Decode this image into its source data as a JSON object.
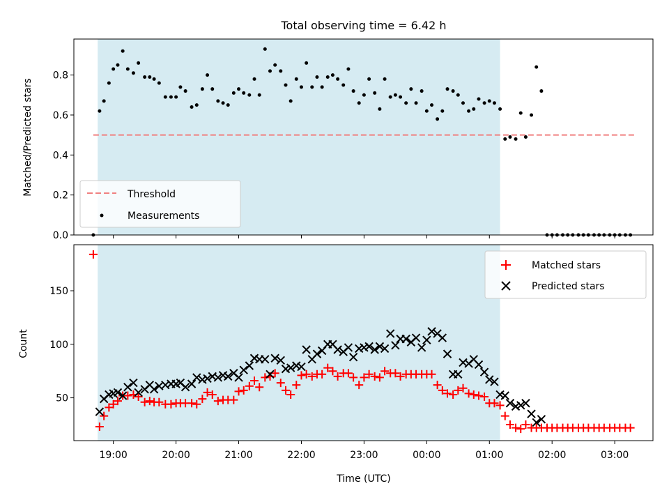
{
  "title": "Total observing time = 6.42 h",
  "colors": {
    "band": "#add8e6",
    "threshold": "#f08080",
    "matched": "#ff0000",
    "predicted": "#000000",
    "measurement": "#000000"
  },
  "chart_data": [
    {
      "type": "scatter",
      "panel": "top",
      "ylabel": "Matched/Predicted stars",
      "xlim": [
        18.37,
        27.61
      ],
      "ylim": [
        0.0,
        0.98
      ],
      "yticks": [
        0.0,
        0.2,
        0.4,
        0.6,
        0.8
      ],
      "ytick_labels": [
        "0.0",
        "0.2",
        "0.4",
        "0.6",
        "0.8"
      ],
      "shaded_span": [
        18.75,
        25.17
      ],
      "threshold": {
        "name": "Threshold",
        "value": 0.5,
        "x_range": [
          18.68,
          27.35
        ]
      },
      "legend": {
        "position": "lower left",
        "entries": [
          "Threshold",
          "Measurements"
        ]
      },
      "series": [
        {
          "name": "Measurements",
          "marker": "dot",
          "x": [
            18.68,
            18.78,
            18.85,
            18.93,
            19.0,
            19.07,
            19.15,
            19.23,
            19.32,
            19.4,
            19.5,
            19.58,
            19.65,
            19.73,
            19.83,
            19.92,
            20.0,
            20.07,
            20.15,
            20.25,
            20.33,
            20.42,
            20.5,
            20.58,
            20.67,
            20.75,
            20.83,
            20.92,
            21.0,
            21.08,
            21.17,
            21.25,
            21.33,
            21.42,
            21.5,
            21.58,
            21.67,
            21.75,
            21.83,
            21.92,
            22.0,
            22.08,
            22.17,
            22.25,
            22.33,
            22.42,
            22.5,
            22.58,
            22.67,
            22.75,
            22.83,
            22.92,
            23.0,
            23.08,
            23.17,
            23.25,
            23.33,
            23.42,
            23.5,
            23.58,
            23.67,
            23.75,
            23.83,
            23.92,
            24.0,
            24.08,
            24.17,
            24.25,
            24.33,
            24.42,
            24.5,
            24.58,
            24.67,
            24.75,
            24.83,
            24.92,
            25.0,
            25.08,
            25.17,
            25.25,
            25.33,
            25.42,
            25.5,
            25.58,
            25.67,
            25.75,
            25.83,
            25.92,
            26.0,
            26.08,
            26.17,
            26.25,
            26.33,
            26.42,
            26.5,
            26.58,
            26.67,
            26.75,
            26.83,
            26.92,
            27.0,
            27.08,
            27.17,
            27.25
          ],
          "y": [
            0.0,
            0.62,
            0.67,
            0.76,
            0.83,
            0.85,
            0.92,
            0.83,
            0.81,
            0.86,
            0.79,
            0.79,
            0.78,
            0.76,
            0.69,
            0.69,
            0.69,
            0.74,
            0.72,
            0.64,
            0.65,
            0.73,
            0.8,
            0.73,
            0.67,
            0.66,
            0.65,
            0.71,
            0.73,
            0.71,
            0.7,
            0.78,
            0.7,
            0.93,
            0.82,
            0.85,
            0.82,
            0.75,
            0.67,
            0.78,
            0.74,
            0.86,
            0.74,
            0.79,
            0.74,
            0.79,
            0.8,
            0.78,
            0.75,
            0.83,
            0.72,
            0.66,
            0.7,
            0.78,
            0.71,
            0.63,
            0.78,
            0.69,
            0.7,
            0.69,
            0.66,
            0.73,
            0.66,
            0.72,
            0.62,
            0.65,
            0.58,
            0.62,
            0.73,
            0.72,
            0.7,
            0.66,
            0.62,
            0.63,
            0.68,
            0.66,
            0.67,
            0.66,
            0.63,
            0.48,
            0.49,
            0.48,
            0.61,
            0.49,
            0.6,
            0.84,
            0.72,
            0.0,
            0.0,
            0.0,
            0.0,
            0.0,
            0.0,
            0.0,
            0.0,
            0.0,
            0.0,
            0.0,
            0.0,
            0.0,
            0.0,
            0.0,
            0.0,
            0.0
          ]
        }
      ]
    },
    {
      "type": "scatter",
      "panel": "bottom",
      "xlabel": "Time (UTC)",
      "ylabel": "Count",
      "xlim": [
        18.37,
        27.61
      ],
      "ylim": [
        10,
        193
      ],
      "yticks": [
        50,
        100,
        150
      ],
      "ytick_labels": [
        "50",
        "100",
        "150"
      ],
      "xticks": [
        19,
        20,
        21,
        22,
        23,
        24,
        25,
        26,
        27
      ],
      "xtick_labels": [
        "19:00",
        "20:00",
        "21:00",
        "22:00",
        "23:00",
        "00:00",
        "01:00",
        "02:00",
        "03:00"
      ],
      "shaded_span": [
        18.75,
        25.17
      ],
      "legend": {
        "position": "upper right",
        "entries": [
          "Matched stars",
          "Predicted stars"
        ]
      },
      "series": [
        {
          "name": "Matched stars",
          "marker": "plus",
          "x": [
            18.68,
            18.78,
            18.85,
            18.93,
            19.0,
            19.07,
            19.15,
            19.23,
            19.32,
            19.4,
            19.5,
            19.58,
            19.65,
            19.73,
            19.83,
            19.92,
            20.0,
            20.07,
            20.15,
            20.25,
            20.33,
            20.42,
            20.5,
            20.58,
            20.67,
            20.75,
            20.83,
            20.92,
            21.0,
            21.08,
            21.17,
            21.25,
            21.33,
            21.42,
            21.5,
            21.58,
            21.67,
            21.75,
            21.83,
            21.92,
            22.0,
            22.08,
            22.17,
            22.25,
            22.33,
            22.42,
            22.5,
            22.58,
            22.67,
            22.75,
            22.83,
            22.92,
            23.0,
            23.08,
            23.17,
            23.25,
            23.33,
            23.42,
            23.5,
            23.58,
            23.67,
            23.75,
            23.83,
            23.92,
            24.0,
            24.08,
            24.17,
            24.25,
            24.33,
            24.42,
            24.5,
            24.58,
            24.67,
            24.75,
            24.83,
            24.92,
            25.0,
            25.08,
            25.17,
            25.25,
            25.33,
            25.42,
            25.5,
            25.58,
            25.67,
            25.75,
            25.83,
            25.92,
            26.0,
            26.08,
            26.17,
            26.25,
            26.33,
            26.42,
            26.5,
            26.58,
            26.67,
            26.75,
            26.83,
            26.92,
            27.0,
            27.08,
            27.17,
            27.25
          ],
          "y": [
            184,
            23,
            33,
            41,
            44,
            47,
            52,
            52,
            53,
            51,
            46,
            47,
            46,
            46,
            44,
            44,
            45,
            45,
            45,
            45,
            44,
            49,
            55,
            53,
            47,
            48,
            48,
            48,
            56,
            57,
            61,
            66,
            60,
            69,
            70,
            73,
            64,
            57,
            53,
            62,
            71,
            72,
            70,
            72,
            72,
            78,
            75,
            70,
            73,
            73,
            69,
            62,
            69,
            72,
            70,
            69,
            75,
            73,
            73,
            70,
            72,
            72,
            72,
            72,
            72,
            72,
            62,
            57,
            54,
            53,
            57,
            59,
            54,
            53,
            52,
            51,
            45,
            45,
            43,
            33,
            25,
            22,
            21,
            25,
            22,
            22,
            22,
            22,
            22,
            22,
            22,
            22,
            22,
            22,
            22,
            22,
            22,
            22,
            22,
            22,
            22,
            22,
            22,
            22
          ]
        },
        {
          "name": "Predicted stars",
          "marker": "x",
          "x": [
            18.78,
            18.85,
            18.93,
            19.0,
            19.07,
            19.15,
            19.23,
            19.32,
            19.4,
            19.5,
            19.58,
            19.65,
            19.73,
            19.83,
            19.92,
            20.0,
            20.07,
            20.15,
            20.25,
            20.33,
            20.42,
            20.5,
            20.58,
            20.67,
            20.75,
            20.83,
            20.92,
            21.0,
            21.08,
            21.17,
            21.25,
            21.33,
            21.42,
            21.5,
            21.58,
            21.67,
            21.75,
            21.83,
            21.92,
            22.0,
            22.08,
            22.17,
            22.25,
            22.33,
            22.42,
            22.5,
            22.58,
            22.67,
            22.75,
            22.83,
            22.92,
            23.0,
            23.08,
            23.17,
            23.25,
            23.33,
            23.42,
            23.5,
            23.58,
            23.67,
            23.75,
            23.83,
            23.92,
            24.0,
            24.08,
            24.17,
            24.25,
            24.33,
            24.42,
            24.5,
            24.58,
            24.67,
            24.75,
            24.83,
            24.92,
            25.0,
            25.08,
            25.17,
            25.25,
            25.33,
            25.42,
            25.5,
            25.58,
            25.67,
            25.75,
            25.83
          ],
          "y": [
            37,
            49,
            53,
            54,
            55,
            52,
            60,
            64,
            55,
            58,
            62,
            58,
            61,
            62,
            63,
            63,
            64,
            60,
            63,
            69,
            67,
            68,
            70,
            69,
            71,
            70,
            73,
            69,
            76,
            80,
            87,
            86,
            86,
            72,
            87,
            85,
            77,
            78,
            80,
            79,
            95,
            86,
            91,
            94,
            100,
            100,
            95,
            93,
            97,
            88,
            96,
            97,
            98,
            95,
            98,
            96,
            110,
            99,
            105,
            105,
            102,
            106,
            97,
            104,
            112,
            110,
            106,
            91,
            72,
            72,
            83,
            82,
            86,
            81,
            74,
            67,
            65,
            53,
            52,
            45,
            42,
            43,
            45,
            35,
            27,
            30
          ]
        }
      ]
    }
  ]
}
